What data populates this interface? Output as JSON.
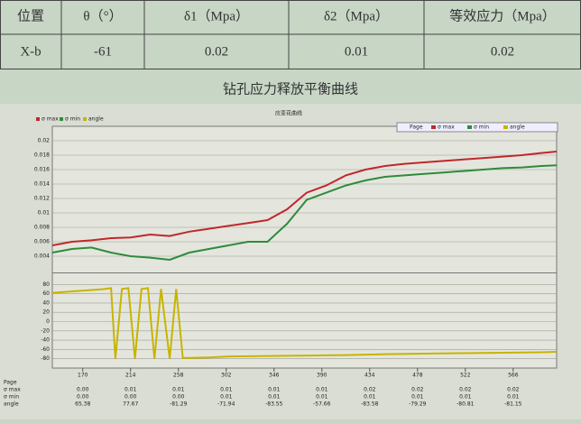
{
  "table": {
    "header": [
      "位置",
      "θ（°）",
      "δ1（Mpa）",
      "δ2（Mpa）",
      "等效应力（Mpa）"
    ],
    "rows": [
      [
        "X-b",
        "-61",
        "0.02",
        "0.01",
        "0.02"
      ]
    ]
  },
  "caption": "钻孔应力释放平衡曲线",
  "chart_data": [
    {
      "type": "line",
      "title": "应变花曲线",
      "x": [
        142,
        160,
        178,
        196,
        214,
        232,
        250,
        268,
        286,
        304,
        322,
        340,
        358,
        376,
        394,
        412,
        430,
        448,
        466,
        484,
        502,
        520,
        538,
        556,
        574,
        592,
        606
      ],
      "series": [
        {
          "name": "σ max",
          "color": "#c0282a",
          "values": [
            0.0055,
            0.006,
            0.0062,
            0.0065,
            0.0066,
            0.007,
            0.0068,
            0.0074,
            0.0078,
            0.0082,
            0.0086,
            0.009,
            0.0105,
            0.0128,
            0.0138,
            0.0152,
            0.016,
            0.0165,
            0.0168,
            0.017,
            0.0172,
            0.0174,
            0.0176,
            0.0178,
            0.018,
            0.0183,
            0.0185
          ]
        },
        {
          "name": "σ min",
          "color": "#2e8b3a",
          "values": [
            0.0045,
            0.005,
            0.0052,
            0.0045,
            0.004,
            0.0038,
            0.0035,
            0.0045,
            0.005,
            0.0055,
            0.006,
            0.006,
            0.0085,
            0.0118,
            0.0128,
            0.0138,
            0.0145,
            0.015,
            0.0152,
            0.0154,
            0.0156,
            0.0158,
            0.016,
            0.0162,
            0.0163,
            0.0165,
            0.0166
          ]
        }
      ],
      "xlim": [
        142,
        606
      ],
      "ylim": [
        0.002,
        0.022
      ],
      "yticks": [
        0.004,
        0.006,
        0.008,
        0.01,
        0.012,
        0.014,
        0.016,
        0.018,
        0.02
      ],
      "grid": true
    },
    {
      "type": "line",
      "x": [
        142,
        160,
        178,
        190,
        196,
        200,
        206,
        212,
        218,
        224,
        230,
        236,
        242,
        250,
        256,
        262,
        268,
        286,
        304,
        340,
        376,
        412,
        448,
        484,
        520,
        556,
        592,
        606
      ],
      "series": [
        {
          "name": "angle",
          "color": "#c8b400",
          "values": [
            62,
            65,
            68,
            70,
            72,
            -80,
            70,
            72,
            -80,
            70,
            72,
            -80,
            70,
            -80,
            70,
            -78,
            -78,
            -77,
            -75,
            -74,
            -73,
            -72,
            -70,
            -69,
            -68,
            -67,
            -66,
            -65
          ]
        }
      ],
      "xlim": [
        142,
        606
      ],
      "ylim": [
        -100,
        100
      ],
      "yticks": [
        -80,
        -60,
        -40,
        -20,
        0,
        20,
        40,
        60,
        80
      ],
      "xticks": [
        170,
        214,
        258,
        302,
        346,
        390,
        434,
        478,
        522,
        566
      ],
      "grid": true,
      "table": {
        "row_labels": [
          "Page",
          "σ max",
          "σ min",
          "angle"
        ],
        "rows": [
          [
            "0.00",
            "0.01",
            "0.01",
            "0.01",
            "0.01",
            "0.01",
            "0.02",
            "0.02",
            "0.02",
            "0.02"
          ],
          [
            "0.00",
            "0.00",
            "0.00",
            "0.01",
            "0.01",
            "0.01",
            "0.01",
            "0.01",
            "0.01",
            "0.01"
          ],
          [
            "65.38",
            "77.67",
            "-81.29",
            "-71.94",
            "-83.55",
            "-57.66",
            "-83.58",
            "-79.29",
            "-80.81",
            "-81.15"
          ]
        ]
      }
    }
  ]
}
